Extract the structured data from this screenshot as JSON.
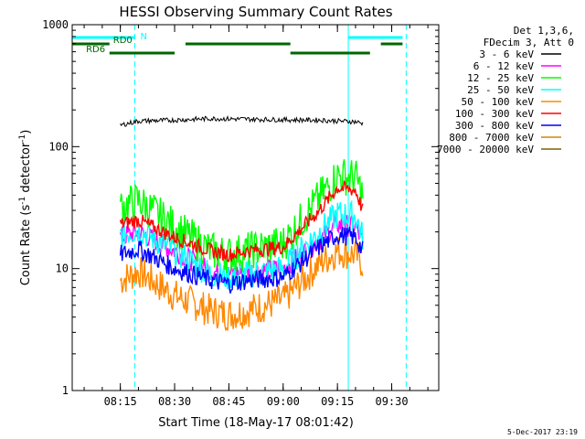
{
  "chart_data": {
    "type": "line",
    "title": "HESSI Observing Summary Count Rates",
    "xlabel": "Start Time (18-May-17 08:01:42)",
    "ylabel_main": "Count Rate (s",
    "ylabel_sup1": "-1",
    "ylabel_mid": " detector",
    "ylabel_sup2": "-1",
    "ylabel_end": ")",
    "y_scale": "log",
    "ylim": [
      1,
      1000
    ],
    "xlim": [
      "08:01:42",
      "09:43:00"
    ],
    "y_ticks": [
      "1",
      "10",
      "100",
      "1000"
    ],
    "x_ticks": [
      "08:15",
      "08:30",
      "08:45",
      "09:00",
      "09:15",
      "09:30"
    ],
    "legend_header": [
      "Det 1,3,6,",
      "FDecim 3, Att 0"
    ],
    "series": [
      {
        "name": "3 - 6 keV",
        "color": "#000000",
        "points": [
          [
            "08:15",
            150
          ],
          [
            "08:20",
            162
          ],
          [
            "08:30",
            165
          ],
          [
            "08:40",
            170
          ],
          [
            "08:50",
            168
          ],
          [
            "09:00",
            166
          ],
          [
            "09:10",
            165
          ],
          [
            "09:20",
            160
          ],
          [
            "09:22",
            155
          ]
        ]
      },
      {
        "name": "6 - 12 keV",
        "color": "#ff00ff",
        "points": [
          [
            "08:15",
            18
          ],
          [
            "08:20",
            20
          ],
          [
            "08:30",
            14
          ],
          [
            "08:40",
            9.5
          ],
          [
            "08:45",
            9
          ],
          [
            "08:50",
            9.5
          ],
          [
            "09:00",
            10
          ],
          [
            "09:10",
            17
          ],
          [
            "09:15",
            23
          ],
          [
            "09:20",
            22
          ],
          [
            "09:22",
            16
          ]
        ]
      },
      {
        "name": "12 - 25 keV",
        "color": "#00ff00",
        "points": [
          [
            "08:15",
            32
          ],
          [
            "08:20",
            36
          ],
          [
            "08:30",
            22
          ],
          [
            "08:40",
            14
          ],
          [
            "08:45",
            13
          ],
          [
            "08:50",
            14
          ],
          [
            "09:00",
            16
          ],
          [
            "09:10",
            38
          ],
          [
            "09:15",
            58
          ],
          [
            "09:20",
            56
          ],
          [
            "09:22",
            40
          ]
        ]
      },
      {
        "name": "25 - 50 keV",
        "color": "#00ffff",
        "points": [
          [
            "08:15",
            19
          ],
          [
            "08:20",
            21
          ],
          [
            "08:30",
            14
          ],
          [
            "08:40",
            9
          ],
          [
            "08:45",
            8.5
          ],
          [
            "08:50",
            9
          ],
          [
            "09:00",
            10
          ],
          [
            "09:10",
            20
          ],
          [
            "09:15",
            28
          ],
          [
            "09:20",
            27
          ],
          [
            "09:22",
            18
          ]
        ]
      },
      {
        "name": "50 - 100 keV",
        "color": "#ff8800",
        "points": [
          [
            "08:15",
            8
          ],
          [
            "08:20",
            9.5
          ],
          [
            "08:30",
            6
          ],
          [
            "08:40",
            4.5
          ],
          [
            "08:45",
            4.2
          ],
          [
            "08:50",
            4.5
          ],
          [
            "09:00",
            5.5
          ],
          [
            "09:10",
            11
          ],
          [
            "09:15",
            14
          ],
          [
            "09:20",
            13
          ],
          [
            "09:22",
            11
          ]
        ]
      },
      {
        "name": "100 - 300 keV",
        "color": "#ff0000",
        "points": [
          [
            "08:15",
            23
          ],
          [
            "08:20",
            25
          ],
          [
            "08:30",
            18
          ],
          [
            "08:40",
            14
          ],
          [
            "08:45",
            13
          ],
          [
            "08:50",
            14
          ],
          [
            "09:00",
            15
          ],
          [
            "09:10",
            30
          ],
          [
            "09:15",
            46
          ],
          [
            "09:20",
            44
          ],
          [
            "09:22",
            30
          ]
        ]
      },
      {
        "name": "300 - 800 keV",
        "color": "#0000ff",
        "points": [
          [
            "08:15",
            13
          ],
          [
            "08:20",
            14.5
          ],
          [
            "08:30",
            10
          ],
          [
            "08:40",
            8
          ],
          [
            "08:45",
            7.5
          ],
          [
            "08:50",
            8
          ],
          [
            "09:00",
            8.5
          ],
          [
            "09:10",
            15
          ],
          [
            "09:15",
            19
          ],
          [
            "09:20",
            18
          ],
          [
            "09:22",
            14
          ]
        ]
      },
      {
        "name": "800 - 7000 keV",
        "color": "#cc8800",
        "points": []
      },
      {
        "name": "7000 - 20000 keV",
        "color": "#806000",
        "points": []
      }
    ],
    "flags": [
      {
        "name": "N",
        "color": "#00ffff",
        "intervals": [
          [
            "08:01:42",
            "08:19"
          ],
          [
            "09:18",
            "09:33"
          ]
        ]
      },
      {
        "name": "RD0",
        "color": "#006600",
        "intervals": [
          [
            "08:01:42",
            "08:12"
          ],
          [
            "08:33",
            "09:02"
          ],
          [
            "09:27",
            "09:33"
          ]
        ]
      },
      {
        "name": "RD6",
        "color": "#006600",
        "intervals": [
          [
            "08:12",
            "08:30"
          ],
          [
            "09:02",
            "09:24"
          ]
        ]
      }
    ],
    "night_boundaries": [
      "08:01:42",
      "09:18"
    ],
    "saa_boundaries": [
      "08:19",
      "09:34"
    ],
    "grid": false,
    "legend_position": "right"
  },
  "footer_stamp": "5-Dec-2017 23:19"
}
